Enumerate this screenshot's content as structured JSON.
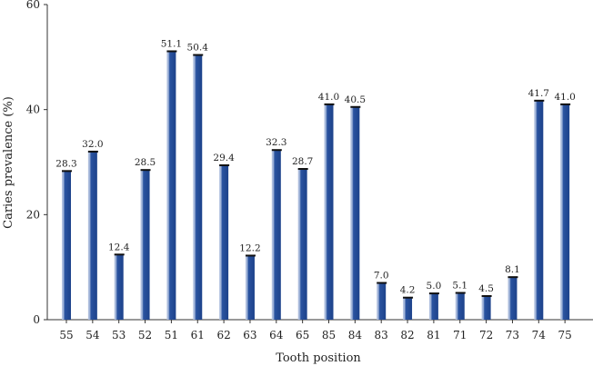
{
  "chart_data": {
    "type": "bar",
    "title": "",
    "xlabel": "Tooth position",
    "ylabel": "Caries prevalence (%)",
    "ylim": [
      0,
      60
    ],
    "yticks": [
      0,
      20,
      40,
      60
    ],
    "grid": false,
    "categories": [
      "55",
      "54",
      "53",
      "52",
      "51",
      "61",
      "62",
      "63",
      "64",
      "65",
      "85",
      "84",
      "83",
      "82",
      "81",
      "71",
      "72",
      "73",
      "74",
      "75"
    ],
    "values": [
      28.3,
      32.0,
      12.4,
      28.5,
      51.1,
      50.4,
      29.4,
      12.2,
      32.3,
      28.7,
      41.0,
      40.5,
      7.0,
      4.2,
      5.0,
      5.1,
      4.5,
      8.1,
      41.7,
      41.0
    ],
    "value_labels": [
      "28.3",
      "32.0",
      "12.4",
      "28.5",
      "51.1",
      "50.4",
      "29.4",
      "12.2",
      "32.3",
      "28.7",
      "41.0",
      "40.5",
      "7.0",
      "4.2",
      "5.0",
      "5.1",
      "4.5",
      "8.1",
      "41.7",
      "41.0"
    ],
    "colors": {
      "bar": "#2a53a0",
      "bar_light": "#b8c6e2",
      "axis": "#333333"
    }
  }
}
